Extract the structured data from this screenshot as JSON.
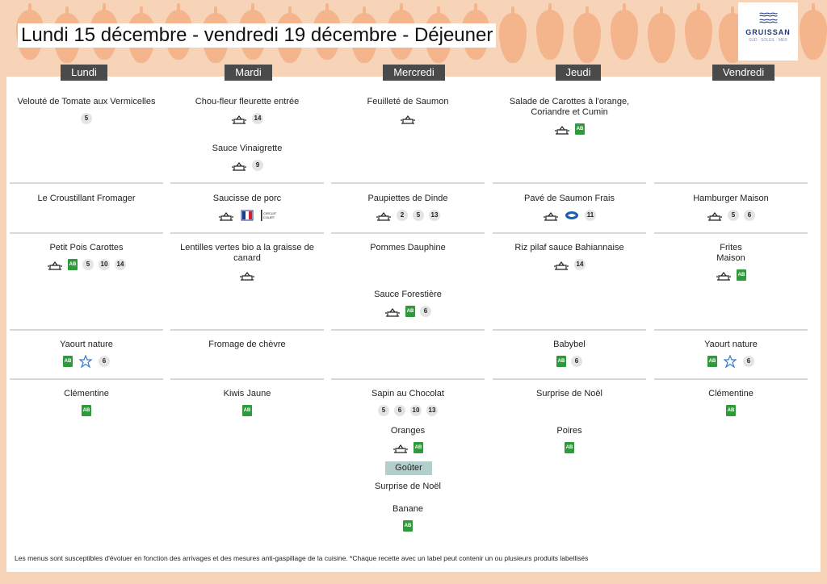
{
  "header": {
    "title": "Lundi 15 décembre - vendredi 19 décembre  - Déjeuner",
    "logo_text": "GRUISSAN",
    "logo_sub": "SUD · SOLEIL · MER"
  },
  "days": [
    {
      "label": "Lundi",
      "rows": [
        [
          {
            "name": "Velouté de Tomate aux Vermicelles",
            "icons": [
              {
                "t": "num",
                "v": "5"
              }
            ]
          }
        ],
        [
          {
            "name": "Le Croustillant Fromager",
            "icons": []
          }
        ],
        [
          {
            "name": "Petit Pois Carottes",
            "icons": [
              {
                "t": "fait-maison"
              },
              {
                "t": "bio"
              },
              {
                "t": "num",
                "v": "5"
              },
              {
                "t": "num",
                "v": "10"
              },
              {
                "t": "num",
                "v": "14"
              }
            ]
          }
        ],
        [
          {
            "name": "Yaourt nature",
            "icons": [
              {
                "t": "bio"
              },
              {
                "t": "label-star"
              },
              {
                "t": "num",
                "v": "6"
              }
            ]
          }
        ],
        [
          {
            "name": "Clémentine",
            "icons": [
              {
                "t": "bio"
              }
            ]
          }
        ]
      ]
    },
    {
      "label": "Mardi",
      "rows": [
        [
          {
            "name": "Chou-fleur fleurette entrée",
            "icons": [
              {
                "t": "fait-maison"
              },
              {
                "t": "num",
                "v": "14"
              }
            ]
          },
          {
            "name": "Sauce Vinaigrette",
            "icons": [
              {
                "t": "fait-maison"
              },
              {
                "t": "num",
                "v": "9"
              }
            ]
          }
        ],
        [
          {
            "name": "Saucisse de porc",
            "icons": [
              {
                "t": "fait-maison"
              },
              {
                "t": "porc-francais"
              },
              {
                "t": "circuit-court"
              }
            ]
          }
        ],
        [
          {
            "name": "Lentilles vertes bio a la graisse de canard",
            "icons": [
              {
                "t": "fait-maison"
              }
            ]
          }
        ],
        [
          {
            "name": "Fromage de chèvre",
            "icons": []
          }
        ],
        [
          {
            "name": "Kiwis Jaune",
            "icons": [
              {
                "t": "bio"
              }
            ]
          }
        ]
      ]
    },
    {
      "label": "Mercredi",
      "rows": [
        [
          {
            "name": "Feuilleté de Saumon",
            "icons": [
              {
                "t": "fait-maison"
              }
            ]
          }
        ],
        [
          {
            "name": "Paupiettes de Dinde",
            "icons": [
              {
                "t": "fait-maison"
              },
              {
                "t": "num",
                "v": "2"
              },
              {
                "t": "num",
                "v": "5"
              },
              {
                "t": "num",
                "v": "13"
              }
            ]
          }
        ],
        [
          {
            "name": "Pommes Dauphine",
            "icons": []
          },
          {
            "name": "Sauce Forestière",
            "icons": [
              {
                "t": "fait-maison"
              },
              {
                "t": "bio"
              },
              {
                "t": "num",
                "v": "6"
              }
            ]
          }
        ],
        [],
        [
          {
            "name": "Sapin au Chocolat",
            "icons": [
              {
                "t": "num",
                "v": "5"
              },
              {
                "t": "num",
                "v": "6"
              },
              {
                "t": "num",
                "v": "10"
              },
              {
                "t": "num",
                "v": "13"
              }
            ]
          },
          {
            "name": "Oranges",
            "icons": [
              {
                "t": "fait-maison"
              },
              {
                "t": "bio"
              }
            ]
          }
        ]
      ]
    },
    {
      "label": "Jeudi",
      "rows": [
        [
          {
            "name": "Salade de Carottes à l'orange, Coriandre et Cumin",
            "icons": [
              {
                "t": "fait-maison"
              },
              {
                "t": "bio"
              }
            ]
          }
        ],
        [
          {
            "name": "Pavé de Saumon Frais",
            "icons": [
              {
                "t": "fait-maison"
              },
              {
                "t": "msc"
              },
              {
                "t": "num",
                "v": "11"
              }
            ]
          }
        ],
        [
          {
            "name": "Riz pilaf sauce Bahiannaise",
            "icons": [
              {
                "t": "fait-maison"
              },
              {
                "t": "num",
                "v": "14"
              }
            ]
          }
        ],
        [
          {
            "name": "Babybel",
            "icons": [
              {
                "t": "bio"
              },
              {
                "t": "num",
                "v": "6"
              }
            ]
          }
        ],
        [
          {
            "name": "Surprise de Noël",
            "icons": []
          },
          {
            "name": "Poires",
            "icons": [
              {
                "t": "bio"
              }
            ]
          }
        ]
      ]
    },
    {
      "label": "Vendredi",
      "rows": [
        [],
        [
          {
            "name": "Hamburger Maison",
            "icons": [
              {
                "t": "fait-maison"
              },
              {
                "t": "num",
                "v": "5"
              },
              {
                "t": "num",
                "v": "6"
              }
            ]
          }
        ],
        [
          {
            "name": "Frites\nMaison",
            "icons": [
              {
                "t": "fait-maison"
              },
              {
                "t": "bio"
              }
            ]
          }
        ],
        [
          {
            "name": "Yaourt nature",
            "icons": [
              {
                "t": "bio"
              },
              {
                "t": "label-star"
              },
              {
                "t": "num",
                "v": "6"
              }
            ]
          }
        ],
        [
          {
            "name": "Clémentine",
            "icons": [
              {
                "t": "bio"
              }
            ]
          }
        ]
      ]
    }
  ],
  "gouter": {
    "label": "Goûter",
    "items": [
      {
        "name": "Surprise de Noël",
        "icons": []
      },
      {
        "name": "Banane",
        "icons": [
          {
            "t": "bio"
          }
        ]
      }
    ]
  },
  "icon_texts": {
    "bio": "AB",
    "circuit_court": "CIRCUIT COURT"
  },
  "colors": {
    "accent": "#f4b48c",
    "bio": "#2f9a3c",
    "day_header": "#4a4a4a",
    "gouter": "#b3cfcb"
  },
  "footer": "Les menus sont susceptibles d'évoluer en fonction des arrivages et des mesures anti-gaspillage de la cuisine. *Chaque recette avec un label peut contenir un ou plusieurs produits labellisés"
}
